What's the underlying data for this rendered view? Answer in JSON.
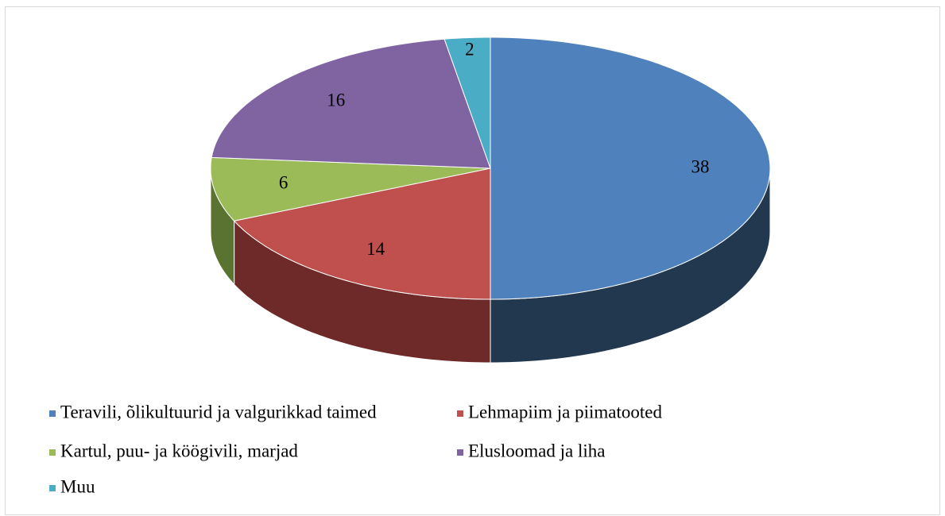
{
  "chart_data": {
    "type": "pie",
    "categories": [
      "Teravili, õlikultuurid ja valgurikkad taimed",
      "Lehmapiim ja piimatooted",
      "Kartul, puu- ja köögivili, marjad",
      "Elusloomad ja liha",
      "Muu"
    ],
    "values": [
      38,
      14,
      6,
      16,
      2
    ],
    "colors": [
      "#4f81bd",
      "#c0504d",
      "#9bbb59",
      "#8064a2",
      "#4bacc6"
    ],
    "side_colors": [
      "#22384f",
      "#6e2a28",
      "#5a7330",
      "#47385c",
      "#2a6a7a"
    ],
    "legend": "bottom"
  }
}
